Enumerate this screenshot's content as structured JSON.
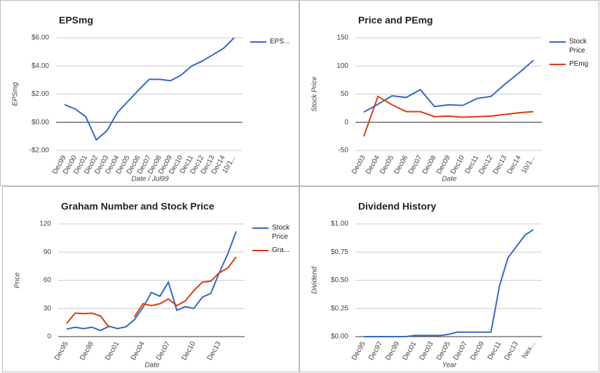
{
  "chart_data": [
    {
      "type": "line",
      "title": "EPSmg",
      "y_label": "EPSmg",
      "x_label": "Date / Jul99",
      "grid": true,
      "legend": "right",
      "categories": [
        "Dec99",
        "Dec00",
        "Dec01",
        "Dec02",
        "Dec03",
        "Dec04",
        "Dec05",
        "Dec06",
        "Dec07",
        "Dec08",
        "Dec09",
        "Dec10",
        "Dec11",
        "Dec12",
        "Dec13",
        "Dec14",
        "10/1..."
      ],
      "series": [
        {
          "name": "EPS...",
          "color": "#3366cc",
          "values": [
            1.25,
            0.95,
            0.4,
            -1.25,
            -0.6,
            0.7,
            1.5,
            2.3,
            3.05,
            3.05,
            2.95,
            3.35,
            4.0,
            4.35,
            4.8,
            5.25,
            6.0
          ]
        }
      ],
      "ylim": [
        -2,
        6
      ],
      "yticks": [
        {
          "value": -2,
          "label": "-$2.00"
        },
        {
          "value": 0,
          "label": "$0.00"
        },
        {
          "value": 2,
          "label": "$2.00"
        },
        {
          "value": 4,
          "label": "$4.00"
        },
        {
          "value": 6,
          "label": "$6.00"
        }
      ]
    },
    {
      "type": "line",
      "title": "Price and PEmg",
      "y_label": "Stock Price",
      "x_label": "Date",
      "grid": true,
      "legend": "right",
      "categories": [
        "Dec03",
        "Dec04",
        "Dec05",
        "Dec06",
        "Dec07",
        "Dec08",
        "Dec09",
        "Dec10",
        "Dec11",
        "Dec12",
        "Dec13",
        "Dec14",
        "10/1..."
      ],
      "series": [
        {
          "name": "Stock Price",
          "color": "#3366cc",
          "values": [
            18,
            32,
            47,
            44,
            58,
            28,
            31,
            30,
            42,
            46,
            68,
            88,
            110
          ]
        },
        {
          "name": "PEmg",
          "color": "#dc3912",
          "values": [
            -25,
            46,
            31,
            19,
            19,
            10,
            11,
            9,
            10,
            11,
            14,
            17,
            19
          ]
        }
      ],
      "ylim": [
        -50,
        150
      ],
      "yticks": [
        -50,
        0,
        50,
        100,
        150
      ]
    },
    {
      "type": "line",
      "title": "Graham Number and Stock Price",
      "y_label": "Price",
      "x_label": "Date",
      "grid": true,
      "legend": "right",
      "categories": [
        "Dec95",
        null,
        null,
        "Dec98",
        null,
        null,
        "Dec01",
        null,
        null,
        "Dec04",
        null,
        null,
        "Dec07",
        null,
        null,
        "Dec10",
        null,
        null,
        "Dec13",
        null,
        null
      ],
      "series": [
        {
          "name": "Stock Price",
          "color": "#3366cc",
          "values": [
            8,
            10,
            8.5,
            10,
            6.5,
            11,
            8.5,
            10.5,
            18,
            31,
            47,
            43,
            58,
            28,
            32,
            30,
            42,
            46,
            68,
            88,
            112
          ]
        },
        {
          "name": "Gra...",
          "color": "#dc3912",
          "values": [
            14,
            25,
            24.5,
            25,
            22,
            10,
            null,
            null,
            21,
            35,
            33,
            35,
            40,
            33,
            38,
            49,
            58,
            59,
            68,
            73,
            85
          ]
        }
      ],
      "ylim": [
        0,
        120
      ],
      "yticks": [
        0,
        30,
        60,
        90,
        120
      ]
    },
    {
      "type": "line",
      "title": "Dividend History",
      "y_label": "Dividend",
      "x_label": "Year",
      "grid": true,
      "categories": [
        "Dec95",
        null,
        "Dec97",
        null,
        "Dec99",
        null,
        "Dec01",
        null,
        "Dec03",
        null,
        "Dec05",
        null,
        "Dec07",
        null,
        "Dec09",
        null,
        "Dec11",
        null,
        "Dec13",
        null,
        "Nex..."
      ],
      "series": [
        {
          "color": "#3366cc",
          "values": [
            0,
            0,
            0,
            0,
            0,
            0,
            0.01,
            0.01,
            0.01,
            0.01,
            0.02,
            0.04,
            0.04,
            0.04,
            0.04,
            0.04,
            0.45,
            0.7,
            0.8,
            0.9,
            0.95
          ]
        }
      ],
      "ylim": [
        0,
        1
      ],
      "yticks": [
        {
          "value": 0,
          "label": "$0.00"
        },
        {
          "value": 0.25,
          "label": "$0.25"
        },
        {
          "value": 0.5,
          "label": "$0.50"
        },
        {
          "value": 0.75,
          "label": "$0.75"
        },
        {
          "value": 1,
          "label": "$1.00"
        }
      ]
    }
  ]
}
